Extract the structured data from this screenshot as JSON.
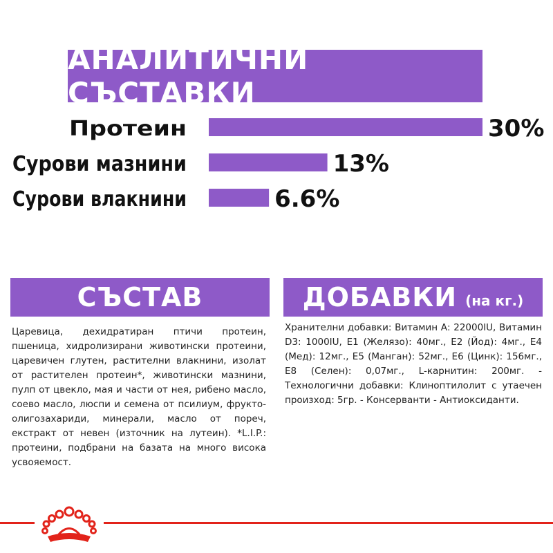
{
  "header": {
    "title": "АНАЛИТИЧНИ СЪСТАВКИ"
  },
  "chart_data": {
    "type": "bar",
    "orientation": "horizontal",
    "title": "",
    "xlabel": "",
    "ylabel": "",
    "xlim": [
      0,
      30
    ],
    "grid": false,
    "categories": [
      "Протеин",
      "Сурови мазнини",
      "Сурови влакнини"
    ],
    "values": [
      30,
      13,
      6.6
    ],
    "value_labels": [
      "30%",
      "13%",
      "6.6%"
    ],
    "bar_color": "#8e5ac8"
  },
  "composition": {
    "title": "СЪСТАВ",
    "text": "Царевица, дехидратиран птичи протеин, пшеница, хидролизирани животински протеини, царевичен глутен, растителни влакнини, изолат от растителен протеин*, животински мазнини, пулп от цвекло, мая и части от нея, рибено масло, соево масло, люспи и семена от псилиум, фрукто-олигозахариди, минерали, масло от пореч, екстракт от невен (източник на лутеин). *L.I.P.: протеини, подбрани на базата на много висока усвояемост."
  },
  "additives": {
    "title": "ДОБАВКИ",
    "subtitle": "(на кг.)",
    "text": "Хранителни добавки: Витамин А: 22000IU, Витамин D3: 1000IU, E1 (Желязо): 40мг., E2 (Йод): 4мг., E4 (Мед): 12мг., E5 (Манган): 52мг., E6 (Цинк): 156мг., E8 (Селен): 0,07мг., L-карнитин: 200мг. - Технологични добавки: Клиноптилолит с утаечен произход: 5гр. - Консерванти - Антиоксиданти."
  },
  "footer": {
    "logo_icon": "crown-icon",
    "accent_color": "#e2231a"
  }
}
